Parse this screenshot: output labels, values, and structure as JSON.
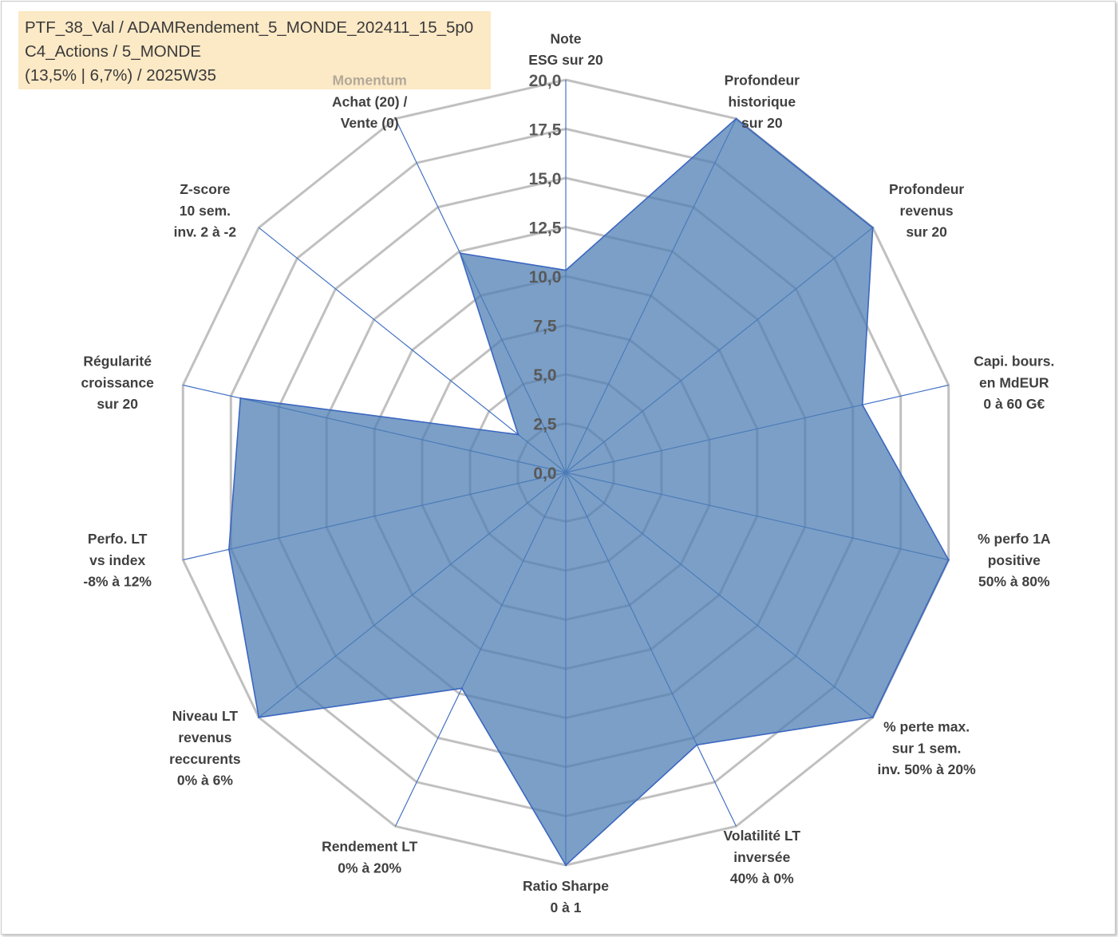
{
  "info_box": {
    "line1": "PTF_38_Val / ADAMRendement_5_MONDE_202411_15_5p0",
    "line2": "C4_Actions / 5_MONDE",
    "line3": "(13,5% | 6,7%) / 2025W35"
  },
  "colors": {
    "grid": "#c0c0c0",
    "spoke": "#4472c4",
    "fill": "#4f7fb4",
    "fill_opacity": 0.75,
    "stroke": "#3b67c0",
    "label": "#404040",
    "label_muted": "#b3a999",
    "tick": "#595959",
    "info_bg": "#fce9c5"
  },
  "chart_data": {
    "type": "radar",
    "rmin": 0,
    "rmax": 20,
    "tick_values": [
      0,
      2.5,
      5,
      7.5,
      10,
      12.5,
      15,
      17.5,
      20
    ],
    "tick_labels": [
      "0,0",
      "2,5",
      "5,0",
      "7,5",
      "10,0",
      "12,5",
      "15,0",
      "17,5",
      "20,0"
    ],
    "categories": [
      {
        "lines": [
          "Note",
          "ESG sur 20"
        ]
      },
      {
        "lines": [
          "Profondeur",
          "historique",
          "sur 20"
        ]
      },
      {
        "lines": [
          "Profondeur",
          "revenus",
          "sur 20"
        ]
      },
      {
        "lines": [
          "Capi. bours.",
          "en MdEUR",
          "0 à 60 G€"
        ]
      },
      {
        "lines": [
          "% perfo 1A",
          "positive",
          "50% à 80%"
        ]
      },
      {
        "lines": [
          "% perte max.",
          "sur 1 sem.",
          "inv. 50% à 20%"
        ]
      },
      {
        "lines": [
          "Volatilité LT",
          "inversée",
          "40% à 0%"
        ]
      },
      {
        "lines": [
          "Ratio Sharpe",
          "0 à 1"
        ]
      },
      {
        "lines": [
          "Rendement LT",
          "0% à 20%"
        ]
      },
      {
        "lines": [
          "Niveau LT",
          "revenus",
          "reccurents",
          "0% à 6%"
        ]
      },
      {
        "lines": [
          "Perfo. LT",
          "vs index",
          "-8% à 12%"
        ]
      },
      {
        "lines": [
          "Régularité",
          "croissance",
          "sur 20"
        ]
      },
      {
        "lines": [
          "Z-score",
          "10 sem.",
          "inv. 2 à -2"
        ]
      },
      {
        "lines": [
          "Momentum",
          "Achat (20) /",
          "Vente (0)"
        ],
        "muted_first_line": true
      }
    ],
    "series": [
      {
        "values": [
          10.3,
          20,
          20,
          15.5,
          20,
          20,
          15.4,
          20,
          12.2,
          20,
          17.6,
          17.0,
          3.1,
          12.4
        ]
      }
    ]
  }
}
